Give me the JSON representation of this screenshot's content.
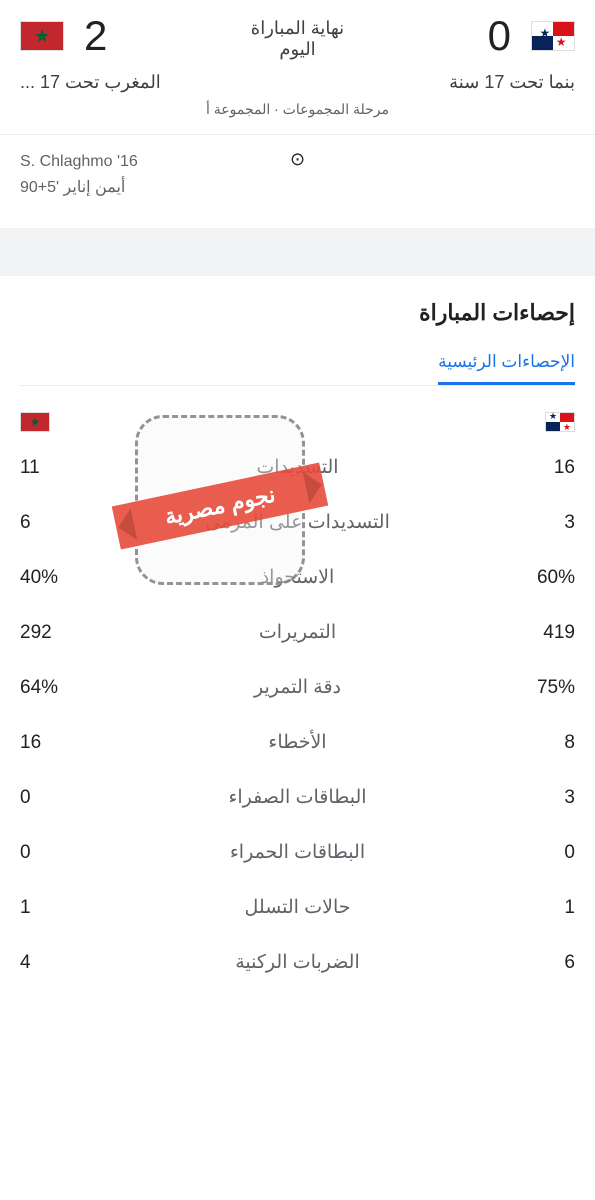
{
  "match": {
    "status_line1": "نهاية المباراة",
    "status_line2": "اليوم",
    "stage": "مرحلة المجموعات · المجموعة أ",
    "home": {
      "name": "بنما تحت 17 سنة",
      "score": "0",
      "flag": "panama"
    },
    "away": {
      "name": "المغرب تحت 17 ...",
      "score": "2",
      "flag": "morocco"
    }
  },
  "scorers": {
    "away": [
      "16' S. Chlaghmo",
      "أيمن إناير '5+90"
    ],
    "icon": "⊙"
  },
  "stats": {
    "title": "إحصاءات المباراة",
    "tab": "الإحصاءات الرئيسية",
    "rows": [
      {
        "label": "التسديدات",
        "home": "16",
        "away": "11"
      },
      {
        "label": "التسديدات على المرمى",
        "home": "3",
        "away": "6"
      },
      {
        "label": "الاستحواذ",
        "home": "60%",
        "away": "40%"
      },
      {
        "label": "التمريرات",
        "home": "419",
        "away": "292"
      },
      {
        "label": "دقة التمرير",
        "home": "75%",
        "away": "64%"
      },
      {
        "label": "الأخطاء",
        "home": "8",
        "away": "16"
      },
      {
        "label": "البطاقات الصفراء",
        "home": "3",
        "away": "0"
      },
      {
        "label": "البطاقات الحمراء",
        "home": "0",
        "away": "0"
      },
      {
        "label": "حالات التسلل",
        "home": "1",
        "away": "1"
      },
      {
        "label": "الضربات الركنية",
        "home": "6",
        "away": "4"
      }
    ]
  },
  "watermark": {
    "text": "نجوم مصرية"
  },
  "colors": {
    "accent": "#1a73e8",
    "text_muted": "#5f6368"
  }
}
